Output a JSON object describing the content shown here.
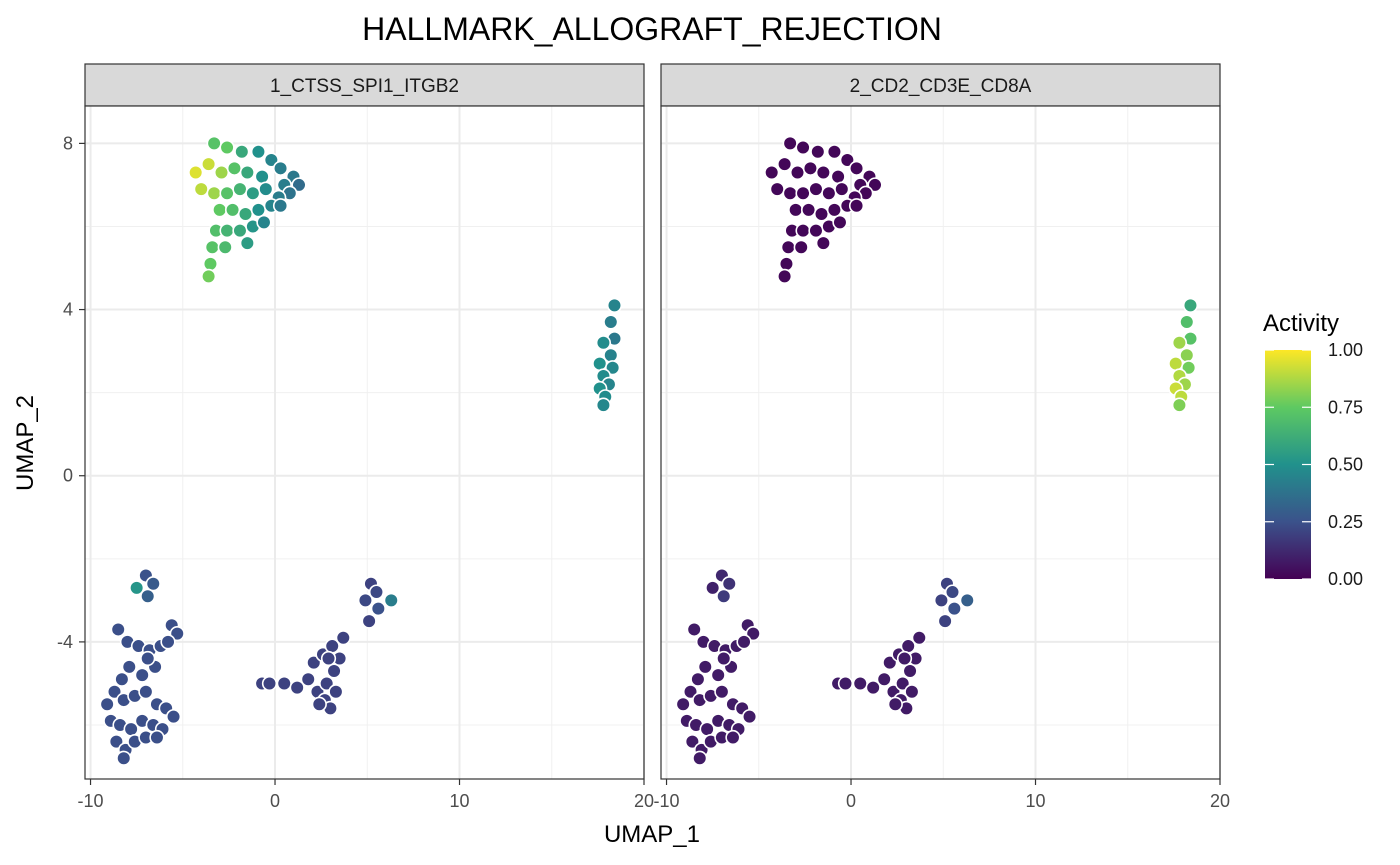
{
  "chart_data": {
    "type": "scatter",
    "title": "HALLMARK_ALLOGRAFT_REJECTION",
    "xlabel": "UMAP_1",
    "ylabel": "UMAP_2",
    "xlim": [
      -10.3,
      20
    ],
    "ylim": [
      -7.3,
      8.9
    ],
    "x_ticks": [
      -10,
      0,
      10,
      20
    ],
    "y_ticks": [
      -4,
      0,
      4,
      8
    ],
    "x_tick_labels": [
      "-10",
      "0",
      "10",
      "20"
    ],
    "y_tick_labels": [
      "-4",
      "0",
      "4",
      "8"
    ],
    "grid": true,
    "legend": {
      "title": "Activity",
      "position": "right",
      "type": "colorbar",
      "range": [
        0,
        1
      ],
      "ticks": [
        1.0,
        0.75,
        0.5,
        0.25,
        0.0
      ],
      "tick_labels": [
        "1.00",
        "0.75",
        "0.50",
        "0.25",
        "0.00"
      ],
      "palette": "viridis",
      "colors": [
        "#440154",
        "#3b528b",
        "#21918c",
        "#5ec962",
        "#fde725"
      ]
    },
    "clusters": [
      {
        "id": "A",
        "points": [
          [
            -3.3,
            8.0
          ],
          [
            -2.6,
            7.9
          ],
          [
            -1.8,
            7.8
          ],
          [
            -0.9,
            7.8
          ],
          [
            -0.2,
            7.6
          ],
          [
            0.3,
            7.4
          ],
          [
            1.0,
            7.2
          ],
          [
            1.3,
            7.0
          ],
          [
            -4.3,
            7.3
          ],
          [
            -3.6,
            7.5
          ],
          [
            -2.9,
            7.3
          ],
          [
            -2.2,
            7.4
          ],
          [
            -1.5,
            7.3
          ],
          [
            -0.7,
            7.2
          ],
          [
            0.5,
            7.0
          ],
          [
            0.8,
            6.8
          ],
          [
            -4.0,
            6.9
          ],
          [
            -3.3,
            6.8
          ],
          [
            -2.6,
            6.8
          ],
          [
            -1.9,
            6.9
          ],
          [
            -1.2,
            6.8
          ],
          [
            -0.5,
            6.9
          ],
          [
            0.2,
            6.7
          ],
          [
            -3.0,
            6.4
          ],
          [
            -2.3,
            6.4
          ],
          [
            -1.6,
            6.3
          ],
          [
            -0.9,
            6.4
          ],
          [
            -0.2,
            6.5
          ],
          [
            0.3,
            6.5
          ],
          [
            -3.2,
            5.9
          ],
          [
            -2.6,
            5.9
          ],
          [
            -1.9,
            5.9
          ],
          [
            -1.2,
            6.0
          ],
          [
            -0.6,
            6.1
          ],
          [
            -3.4,
            5.5
          ],
          [
            -2.7,
            5.5
          ],
          [
            -1.5,
            5.6
          ],
          [
            -3.5,
            5.1
          ],
          [
            -3.6,
            4.8
          ]
        ],
        "act1": [
          0.72,
          0.75,
          0.6,
          0.5,
          0.45,
          0.42,
          0.4,
          0.35,
          0.95,
          0.92,
          0.85,
          0.72,
          0.6,
          0.5,
          0.42,
          0.38,
          0.9,
          0.85,
          0.72,
          0.65,
          0.55,
          0.48,
          0.42,
          0.75,
          0.7,
          0.6,
          0.5,
          0.45,
          0.4,
          0.7,
          0.65,
          0.6,
          0.52,
          0.45,
          0.72,
          0.68,
          0.55,
          0.75,
          0.78
        ],
        "act2": 0.02
      },
      {
        "id": "B",
        "points": [
          [
            18.4,
            4.1
          ],
          [
            18.2,
            3.7
          ],
          [
            18.4,
            3.3
          ],
          [
            17.8,
            3.2
          ],
          [
            18.2,
            2.9
          ],
          [
            17.6,
            2.7
          ],
          [
            18.3,
            2.6
          ],
          [
            17.8,
            2.4
          ],
          [
            18.1,
            2.2
          ],
          [
            17.6,
            2.1
          ],
          [
            17.9,
            1.9
          ],
          [
            17.8,
            1.7
          ]
        ],
        "act1": [
          0.45,
          0.42,
          0.4,
          0.48,
          0.44,
          0.5,
          0.46,
          0.48,
          0.45,
          0.5,
          0.48,
          0.46
        ],
        "act2": [
          0.6,
          0.7,
          0.72,
          0.85,
          0.82,
          0.9,
          0.78,
          0.88,
          0.85,
          0.92,
          0.9,
          0.8
        ]
      },
      {
        "id": "C",
        "points": [
          [
            -7.0,
            -2.4
          ],
          [
            -6.6,
            -2.6
          ],
          [
            -7.5,
            -2.7
          ],
          [
            -6.9,
            -2.9
          ]
        ],
        "act1": [
          0.25,
          0.28,
          0.52,
          0.3
        ],
        "act2": [
          0.12,
          0.15,
          0.1,
          0.18
        ]
      },
      {
        "id": "D",
        "points": [
          [
            -8.5,
            -3.7
          ],
          [
            -8.0,
            -4.0
          ],
          [
            -7.4,
            -4.1
          ],
          [
            -6.8,
            -4.2
          ],
          [
            -6.2,
            -4.1
          ],
          [
            -5.6,
            -3.6
          ],
          [
            -5.3,
            -3.8
          ],
          [
            -9.1,
            -5.5
          ],
          [
            -8.7,
            -5.2
          ],
          [
            -8.2,
            -5.4
          ],
          [
            -7.6,
            -5.3
          ],
          [
            -7.0,
            -5.2
          ],
          [
            -6.4,
            -5.5
          ],
          [
            -5.9,
            -5.6
          ],
          [
            -5.5,
            -5.8
          ],
          [
            -8.9,
            -5.9
          ],
          [
            -8.4,
            -6.0
          ],
          [
            -7.8,
            -6.1
          ],
          [
            -7.2,
            -5.9
          ],
          [
            -6.6,
            -6.0
          ],
          [
            -6.1,
            -6.1
          ],
          [
            -8.6,
            -6.4
          ],
          [
            -8.1,
            -6.6
          ],
          [
            -7.6,
            -6.4
          ],
          [
            -7.0,
            -6.3
          ],
          [
            -6.4,
            -6.3
          ],
          [
            -7.9,
            -4.6
          ],
          [
            -7.2,
            -4.8
          ],
          [
            -6.5,
            -4.6
          ],
          [
            -8.3,
            -4.9
          ],
          [
            -6.9,
            -4.4
          ],
          [
            -5.8,
            -4.0
          ],
          [
            -8.2,
            -6.8
          ]
        ],
        "act1": 0.24,
        "act2": 0.08
      },
      {
        "id": "E",
        "points": [
          [
            -0.7,
            -5.0
          ],
          [
            -0.3,
            -5.0
          ],
          [
            0.5,
            -5.0
          ],
          [
            1.2,
            -5.1
          ],
          [
            1.8,
            -4.9
          ],
          [
            2.1,
            -4.5
          ],
          [
            2.6,
            -4.3
          ],
          [
            3.1,
            -4.1
          ],
          [
            3.7,
            -3.9
          ],
          [
            2.3,
            -5.2
          ],
          [
            2.8,
            -5.0
          ],
          [
            3.2,
            -4.7
          ],
          [
            3.5,
            -4.4
          ],
          [
            2.7,
            -5.4
          ],
          [
            3.0,
            -5.6
          ],
          [
            2.4,
            -5.5
          ],
          [
            2.9,
            -4.4
          ],
          [
            3.3,
            -5.2
          ]
        ],
        "act1": 0.2,
        "act2": 0.08
      },
      {
        "id": "F",
        "points": [
          [
            5.2,
            -2.6
          ],
          [
            5.5,
            -2.8
          ],
          [
            4.9,
            -3.0
          ],
          [
            5.6,
            -3.2
          ],
          [
            6.3,
            -3.0
          ],
          [
            5.1,
            -3.5
          ]
        ],
        "act1": [
          0.2,
          0.22,
          0.22,
          0.25,
          0.42,
          0.2
        ],
        "act2": [
          0.2,
          0.22,
          0.2,
          0.25,
          0.3,
          0.2
        ]
      }
    ],
    "facets": [
      {
        "strip_label": "1_CTSS_SPI1_ITGB2",
        "activity_key": "act1"
      },
      {
        "strip_label": "2_CD2_CD3E_CD8A",
        "activity_key": "act2"
      }
    ]
  }
}
